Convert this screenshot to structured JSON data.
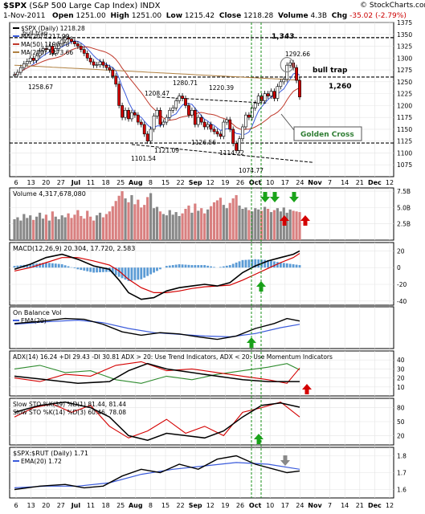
{
  "header": {
    "symbol": "$SPX",
    "name": "(S&P 500 Large Cap Index)",
    "exchange": "INDX",
    "source": "© StockCharts.com",
    "date": "1-Nov-2011",
    "open_label": "Open",
    "open": "1251.00",
    "high_label": "High",
    "high": "1251.00",
    "low_label": "Low",
    "low": "1215.42",
    "close_label": "Close",
    "close": "1218.28",
    "volume_label": "Volume",
    "volume": "4.3B",
    "chg_label": "Chg",
    "chg": "-35.02 (-2.79%)"
  },
  "chart_data": [
    {
      "panel": "price",
      "type": "candlestick",
      "legend": [
        "$SPX (Daily) 1218.28",
        "MA(20) 1217.99",
        "MA(50) 1190.78",
        "MA(200) 1273.66"
      ],
      "ylim": [
        1050,
        1375
      ],
      "yticks": [
        1075,
        1100,
        1125,
        1150,
        1175,
        1200,
        1225,
        1250,
        1275,
        1300,
        1325,
        1350,
        1375
      ],
      "series": [
        {
          "name": "$SPX",
          "color": "#000000"
        },
        {
          "name": "MA(20)",
          "color": "#3b5bdb"
        },
        {
          "name": "MA(50)",
          "color": "#c0392b"
        },
        {
          "name": "MA(200)",
          "color": "#b08040"
        }
      ],
      "closes": [
        1265,
        1270,
        1280,
        1288,
        1293,
        1300,
        1295,
        1305,
        1315,
        1320,
        1318,
        1325,
        1310,
        1320,
        1330,
        1338,
        1343,
        1340,
        1335,
        1330,
        1325,
        1318,
        1310,
        1300,
        1292,
        1285,
        1286,
        1292,
        1285,
        1280,
        1275,
        1262,
        1245,
        1200,
        1175,
        1190,
        1172,
        1185,
        1180,
        1165,
        1160,
        1140,
        1125,
        1150,
        1178,
        1190,
        1160,
        1165,
        1175,
        1190,
        1195,
        1210,
        1220,
        1215,
        1200,
        1180,
        1190,
        1160,
        1175,
        1165,
        1155,
        1160,
        1150,
        1145,
        1140,
        1135,
        1165,
        1170,
        1150,
        1120,
        1105,
        1130,
        1155,
        1180,
        1175,
        1195,
        1205,
        1220,
        1210,
        1225,
        1220,
        1230,
        1215,
        1240,
        1250,
        1255,
        1285,
        1290,
        1280,
        1253,
        1218
      ],
      "annotations": [
        "bull trap",
        "1,343",
        "1258.67",
        "1280.71",
        "1208.47",
        "1220.39",
        "1101.54",
        "1121.09",
        "1126.56",
        "1114.22",
        "1074.77",
        "1292.66",
        "bull trap",
        "1,260",
        "Golden Cross"
      ],
      "xtick_labels": [
        "6",
        "13",
        "20",
        "27",
        "Jul",
        "11",
        "18",
        "25",
        "Aug",
        "8",
        "15",
        "22",
        "Sep",
        "12",
        "19",
        "26",
        "Oct",
        "10",
        "17",
        "24",
        "Nov",
        "7",
        "14",
        "21",
        "Dec",
        "12"
      ]
    },
    {
      "panel": "volume",
      "type": "bar",
      "label": "Volume 4,317,678,080",
      "yticks": [
        "2.5B",
        "5.0B",
        "7.5B"
      ],
      "ylim": [
        0,
        8
      ],
      "values": [
        3.2,
        3.5,
        3.0,
        4.0,
        3.4,
        3.8,
        3.1,
        3.6,
        4.2,
        3.3,
        3.9,
        3.0,
        4.4,
        3.6,
        3.2,
        3.8,
        3.5,
        4.1,
        3.4,
        3.9,
        4.6,
        3.7,
        3.3,
        4.5,
        3.6,
        3.0,
        3.8,
        4.2,
        3.5,
        4.0,
        4.4,
        5.2,
        6.0,
        6.8,
        7.5,
        6.4,
        5.8,
        6.9,
        5.5,
        6.2,
        5.0,
        5.4,
        6.6,
        7.2,
        4.9,
        5.1,
        4.4,
        4.0,
        3.8,
        4.6,
        3.9,
        4.3,
        3.7,
        4.1,
        4.8,
        5.3,
        4.2,
        5.6,
        4.5,
        4.9,
        4.1,
        4.7,
        5.2,
        5.8,
        6.1,
        6.5,
        5.4,
        4.9,
        5.7,
        6.4,
        6.9,
        5.3,
        4.8,
        5.0,
        4.6,
        4.4,
        4.9,
        4.7,
        4.5,
        5.1,
        4.8,
        4.3,
        4.6,
        4.9,
        4.4,
        5.0,
        4.2,
        4.7,
        4.5,
        4.4,
        4.3
      ]
    },
    {
      "panel": "macd",
      "type": "line",
      "label": "MACD(12,26,9) 20.304, 17.720, 2.583",
      "ylim": [
        -45,
        30
      ],
      "yticks": [
        -40,
        -20,
        0,
        20
      ],
      "series": [
        {
          "name": "MACD",
          "color": "#000000",
          "points": [
            [
              0,
              -2
            ],
            [
              5,
              4
            ],
            [
              10,
              12
            ],
            [
              15,
              16
            ],
            [
              20,
              10
            ],
            [
              25,
              2
            ],
            [
              30,
              -2
            ],
            [
              33,
              -15
            ],
            [
              36,
              -30
            ],
            [
              40,
              -38
            ],
            [
              44,
              -36
            ],
            [
              48,
              -28
            ],
            [
              52,
              -24
            ],
            [
              56,
              -22
            ],
            [
              60,
              -20
            ],
            [
              64,
              -22
            ],
            [
              68,
              -18
            ],
            [
              72,
              -6
            ],
            [
              76,
              2
            ],
            [
              80,
              8
            ],
            [
              84,
              12
            ],
            [
              88,
              16
            ],
            [
              90,
              20
            ]
          ]
        },
        {
          "name": "Signal",
          "color": "#d40000",
          "points": [
            [
              0,
              -4
            ],
            [
              5,
              0
            ],
            [
              10,
              6
            ],
            [
              15,
              12
            ],
            [
              20,
              12
            ],
            [
              25,
              8
            ],
            [
              30,
              3
            ],
            [
              33,
              -4
            ],
            [
              36,
              -14
            ],
            [
              40,
              -24
            ],
            [
              44,
              -30
            ],
            [
              48,
              -30
            ],
            [
              52,
              -28
            ],
            [
              56,
              -25
            ],
            [
              60,
              -23
            ],
            [
              64,
              -22
            ],
            [
              68,
              -21
            ],
            [
              72,
              -15
            ],
            [
              76,
              -8
            ],
            [
              80,
              -1
            ],
            [
              84,
              6
            ],
            [
              88,
              12
            ],
            [
              90,
              17
            ]
          ]
        }
      ]
    },
    {
      "panel": "obv",
      "type": "line",
      "label": "On Balance Vol",
      "series": [
        {
          "name": "On Balance Vol",
          "color": "#000000",
          "points": [
            [
              0,
              60
            ],
            [
              8,
              65
            ],
            [
              16,
              72
            ],
            [
              22,
              70
            ],
            [
              28,
              58
            ],
            [
              34,
              40
            ],
            [
              40,
              32
            ],
            [
              46,
              38
            ],
            [
              52,
              35
            ],
            [
              58,
              28
            ],
            [
              64,
              22
            ],
            [
              70,
              30
            ],
            [
              76,
              48
            ],
            [
              82,
              60
            ],
            [
              86,
              72
            ],
            [
              90,
              66
            ]
          ]
        },
        {
          "name": "EMA(20)",
          "color": "#3b5bdb",
          "points": [
            [
              0,
              58
            ],
            [
              10,
              64
            ],
            [
              20,
              68
            ],
            [
              28,
              62
            ],
            [
              36,
              48
            ],
            [
              44,
              38
            ],
            [
              52,
              34
            ],
            [
              60,
              30
            ],
            [
              68,
              28
            ],
            [
              76,
              36
            ],
            [
              84,
              50
            ],
            [
              90,
              58
            ]
          ]
        }
      ]
    },
    {
      "panel": "adx",
      "type": "line",
      "label": "ADX(14) 16.24 +DI 29.43 -DI 30.81   ADX > 20: Use Trend Indicators, ADX < 20: Use Momentum Indicators",
      "ylim": [
        0,
        50
      ],
      "yticks": [
        10,
        20,
        30,
        40
      ],
      "series": [
        {
          "name": "ADX",
          "color": "#000000",
          "points": [
            [
              0,
              22
            ],
            [
              10,
              18
            ],
            [
              20,
              14
            ],
            [
              30,
              16
            ],
            [
              36,
              28
            ],
            [
              42,
              36
            ],
            [
              48,
              30
            ],
            [
              56,
              26
            ],
            [
              64,
              22
            ],
            [
              72,
              18
            ],
            [
              80,
              16
            ],
            [
              90,
              16
            ]
          ]
        },
        {
          "name": "+DI",
          "color": "#2e8b2e",
          "points": [
            [
              0,
              30
            ],
            [
              8,
              34
            ],
            [
              16,
              26
            ],
            [
              24,
              28
            ],
            [
              32,
              18
            ],
            [
              40,
              14
            ],
            [
              48,
              22
            ],
            [
              56,
              18
            ],
            [
              64,
              24
            ],
            [
              72,
              28
            ],
            [
              80,
              32
            ],
            [
              86,
              36
            ],
            [
              90,
              29
            ]
          ]
        },
        {
          "name": "-DI",
          "color": "#d40000",
          "points": [
            [
              0,
              20
            ],
            [
              8,
              16
            ],
            [
              16,
              24
            ],
            [
              24,
              22
            ],
            [
              32,
              34
            ],
            [
              40,
              38
            ],
            [
              48,
              28
            ],
            [
              56,
              30
            ],
            [
              64,
              26
            ],
            [
              72,
              22
            ],
            [
              80,
              18
            ],
            [
              86,
              14
            ],
            [
              90,
              31
            ]
          ]
        }
      ]
    },
    {
      "panel": "sto",
      "type": "line",
      "labels": [
        "Slow STO %K(39) %D(1) 81.44, 81.44",
        "Slow STO %K(14) %D(3) 60.46, 78.08"
      ],
      "ylim": [
        0,
        100
      ],
      "yticks": [
        20,
        50,
        80
      ],
      "series": [
        {
          "name": "%K(39)",
          "color": "#000000",
          "points": [
            [
              0,
              70
            ],
            [
              8,
              85
            ],
            [
              16,
              92
            ],
            [
              24,
              80
            ],
            [
              30,
              60
            ],
            [
              36,
              20
            ],
            [
              42,
              10
            ],
            [
              48,
              25
            ],
            [
              54,
              20
            ],
            [
              60,
              15
            ],
            [
              66,
              30
            ],
            [
              72,
              60
            ],
            [
              78,
              85
            ],
            [
              84,
              90
            ],
            [
              90,
              81
            ]
          ]
        },
        {
          "name": "%K(14)",
          "color": "#d40000",
          "points": [
            [
              0,
              60
            ],
            [
              6,
              80
            ],
            [
              12,
              88
            ],
            [
              18,
              70
            ],
            [
              24,
              85
            ],
            [
              30,
              40
            ],
            [
              36,
              15
            ],
            [
              42,
              30
            ],
            [
              48,
              55
            ],
            [
              54,
              25
            ],
            [
              60,
              40
            ],
            [
              66,
              20
            ],
            [
              72,
              70
            ],
            [
              78,
              80
            ],
            [
              84,
              92
            ],
            [
              90,
              60
            ]
          ]
        }
      ]
    },
    {
      "panel": "ratio",
      "type": "line",
      "label": "$SPX:$RUT (Daily) 1.71",
      "sublabel": "EMA(20) 1.72",
      "ylim": [
        1.55,
        1.85
      ],
      "yticks": [
        1.6,
        1.7,
        1.8
      ],
      "series": [
        {
          "name": "$SPX:$RUT",
          "color": "#000000",
          "points": [
            [
              0,
              1.6
            ],
            [
              8,
              1.62
            ],
            [
              16,
              1.63
            ],
            [
              22,
              1.61
            ],
            [
              28,
              1.62
            ],
            [
              34,
              1.68
            ],
            [
              40,
              1.72
            ],
            [
              46,
              1.7
            ],
            [
              52,
              1.75
            ],
            [
              58,
              1.72
            ],
            [
              64,
              1.78
            ],
            [
              70,
              1.8
            ],
            [
              76,
              1.75
            ],
            [
              82,
              1.72
            ],
            [
              86,
              1.7
            ],
            [
              90,
              1.71
            ]
          ]
        },
        {
          "name": "EMA(20)",
          "color": "#3b5bdb",
          "points": [
            [
              0,
              1.61
            ],
            [
              10,
              1.62
            ],
            [
              20,
              1.62
            ],
            [
              30,
              1.64
            ],
            [
              40,
              1.69
            ],
            [
              50,
              1.72
            ],
            [
              60,
              1.74
            ],
            [
              70,
              1.76
            ],
            [
              80,
              1.75
            ],
            [
              90,
              1.72
            ]
          ]
        }
      ]
    }
  ]
}
